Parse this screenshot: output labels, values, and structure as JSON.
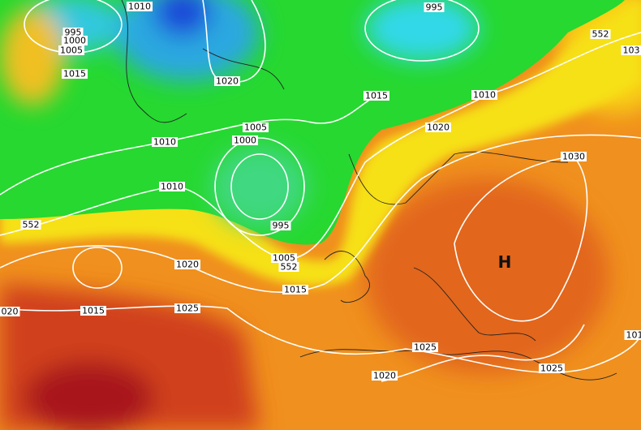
{
  "isobar_labels": [
    "1010",
    "995",
    "1000",
    "1005",
    "1015",
    "1020",
    "1010",
    "1005",
    "1000",
    "1010",
    "995",
    "1005",
    "552",
    "552",
    "1015",
    "1020",
    "020",
    "1015",
    "1025",
    "1025",
    "1020",
    "1025",
    "1030",
    "1020",
    "1015",
    "1010",
    "995",
    "552",
    "103",
    "101"
  ],
  "pressure_centers": [
    "H"
  ]
}
